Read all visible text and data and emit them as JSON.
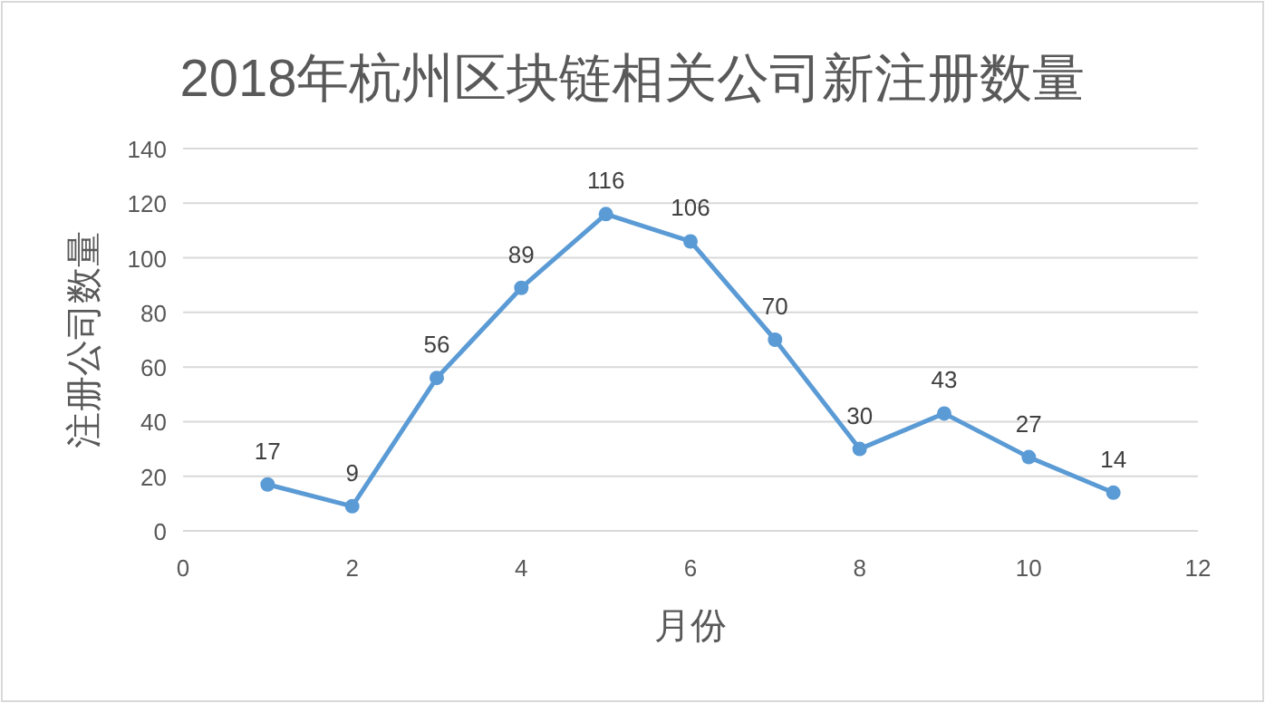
{
  "chart_data": {
    "type": "line",
    "title": "2018年杭州区块链相关公司新注册数量",
    "xlabel": "月份",
    "ylabel": "注册公司数量",
    "x": [
      1,
      2,
      3,
      4,
      5,
      6,
      7,
      8,
      9,
      10,
      11
    ],
    "series": [
      {
        "color": "#5b9bd5",
        "values": [
          17,
          9,
          56,
          89,
          116,
          106,
          70,
          30,
          43,
          27,
          14
        ]
      }
    ],
    "xlim": [
      0,
      12
    ],
    "xticks": [
      0,
      2,
      4,
      6,
      8,
      10,
      12
    ],
    "ylim": [
      0,
      140
    ],
    "yticks": [
      0,
      20,
      40,
      60,
      80,
      100,
      120,
      140
    ],
    "grid": "y",
    "marker": "circle",
    "line_style": "solid",
    "data_labels": true
  }
}
